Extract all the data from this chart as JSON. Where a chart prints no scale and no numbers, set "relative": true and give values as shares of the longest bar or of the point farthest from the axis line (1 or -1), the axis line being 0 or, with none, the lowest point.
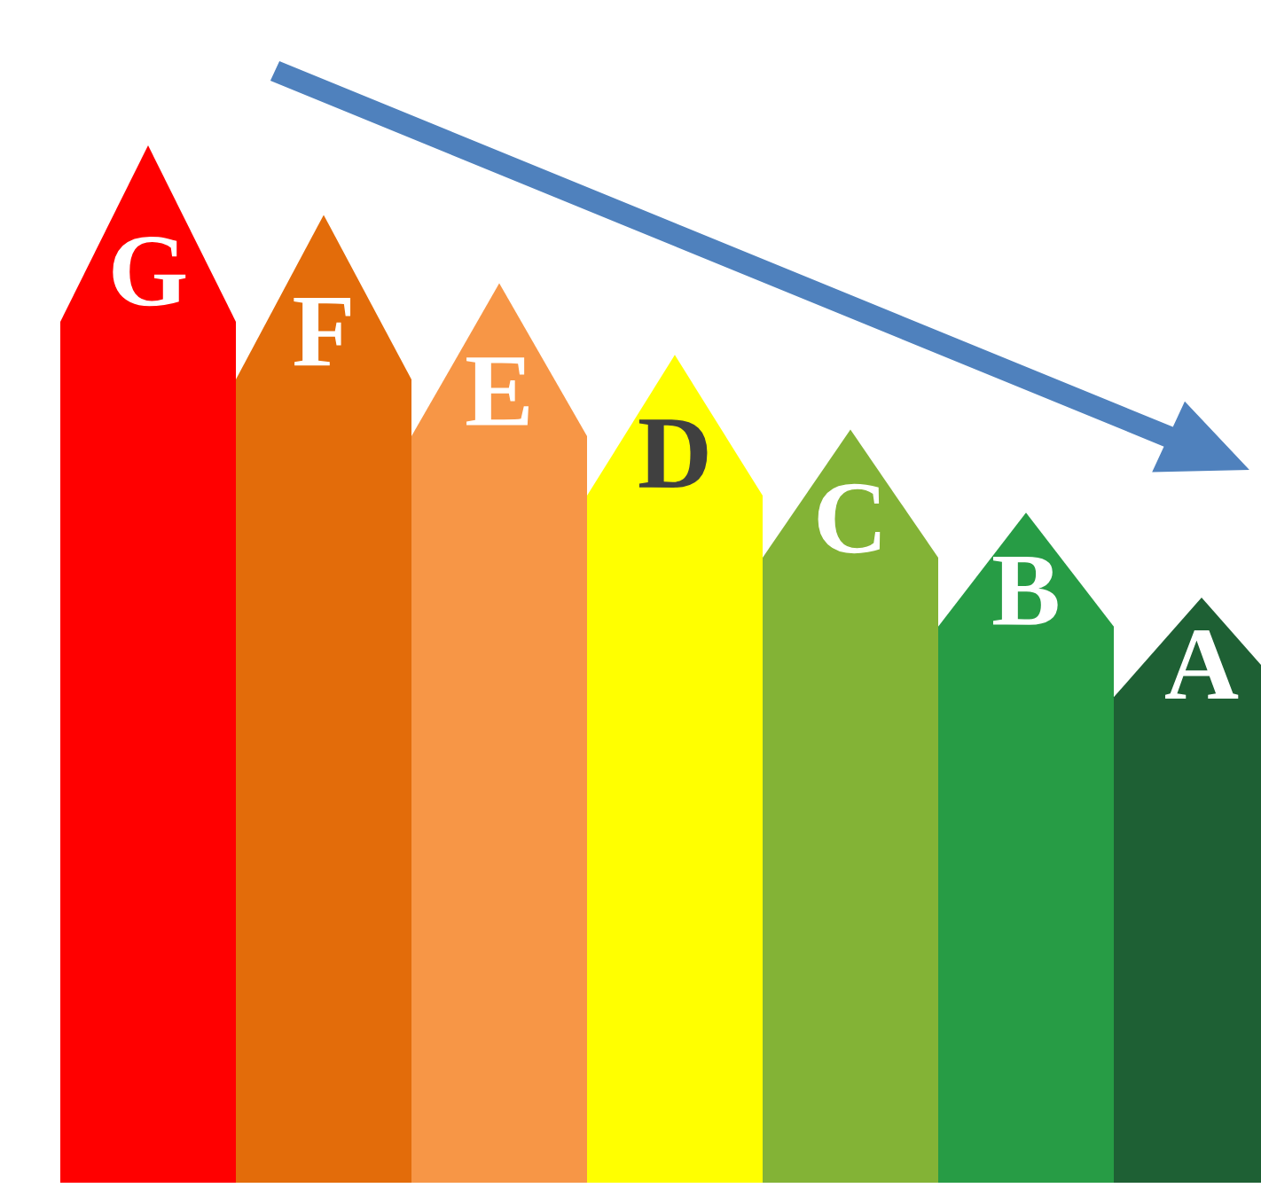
{
  "chart_data": {
    "type": "bar",
    "relative": true,
    "categories": [
      "G",
      "F",
      "E",
      "D",
      "C",
      "B",
      "A"
    ],
    "values": [
      1,
      0.933,
      0.867,
      0.798,
      0.726,
      0.646,
      0.564
    ],
    "colors": [
      "#ff0000",
      "#e36c0a",
      "#f79646",
      "#ffff00",
      "#83b336",
      "#279c45",
      "#1e6034"
    ]
  }
}
